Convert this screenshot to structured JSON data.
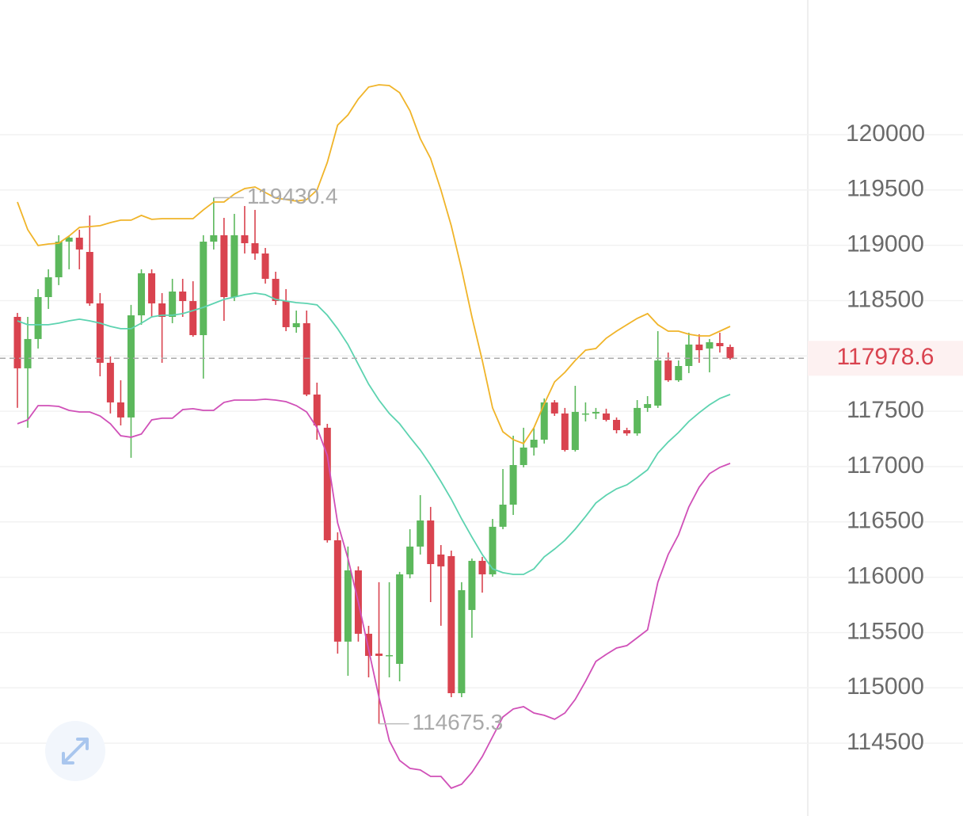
{
  "chart_data": {
    "type": "candlestick",
    "ylim": [
      113842,
      121217
    ],
    "yticks": [
      114500,
      115000,
      115500,
      116000,
      116500,
      117000,
      117500,
      118000,
      118500,
      119000,
      119500,
      120000
    ],
    "grid": true,
    "up_color": "#5cb85c",
    "down_color": "#d9434f",
    "open": [
      118353,
      117888,
      118153,
      118532,
      118711,
      119033,
      119069,
      118940,
      118475,
      117938,
      117580,
      117444,
      118367,
      118747,
      118475,
      118353,
      118582,
      118496,
      118188,
      119033,
      119091,
      118532,
      119091,
      119019,
      118926,
      118697,
      118496,
      118260,
      118296,
      117651,
      117351,
      116334,
      115418,
      116062,
      115489,
      115310,
      115289,
      115217,
      116026,
      116277,
      116513,
      116205,
      116191,
      114952,
      115704,
      116148,
      116026,
      116456,
      116656,
      117014,
      117172,
      117243,
      117580,
      117480,
      117150,
      117472,
      117480,
      117480,
      117422,
      117329,
      117300,
      117530,
      117551,
      117959,
      117780,
      117909,
      118103,
      118067,
      118117,
      118081
    ],
    "high": [
      118389,
      118353,
      118604,
      118783,
      119091,
      119083,
      119141,
      119270,
      118568,
      117995,
      117780,
      118461,
      118783,
      118783,
      118568,
      118697,
      118697,
      118675,
      119091,
      119430.4,
      119248,
      119284,
      119355,
      119320,
      118976,
      118761,
      118604,
      118410,
      118410,
      117759,
      117386,
      116406,
      116277,
      116098,
      115561,
      115955,
      115955,
      116048,
      116434,
      116742,
      116635,
      116291,
      116241,
      115955,
      116169,
      116184,
      116527,
      116978,
      117279,
      117351,
      117351,
      117616,
      117601,
      117530,
      117730,
      117580,
      117530,
      117523,
      117444,
      117351,
      117601,
      117637,
      118224,
      118031,
      117959,
      118210,
      118196,
      118153,
      118210,
      118103
    ],
    "low": [
      117531,
      117351,
      118067,
      118425,
      118640,
      118783,
      118783,
      118453,
      117816,
      117480,
      117372,
      117079,
      118282,
      118353,
      117938,
      118296,
      118353,
      118174,
      117795,
      118962,
      118317,
      118496,
      118926,
      118869,
      118654,
      118461,
      118224,
      118210,
      117637,
      117243,
      116313,
      115310,
      115109,
      115418,
      115095,
      114675.3,
      115095,
      115059,
      115990,
      116205,
      115775,
      115561,
      114916,
      114916,
      115453,
      115861,
      116005,
      116434,
      116563,
      116993,
      117100,
      117208,
      117458,
      117136,
      117136,
      117408,
      117429,
      117408,
      117300,
      117279,
      117279,
      117494,
      117530,
      117766,
      117766,
      117845,
      117938,
      117852,
      118031,
      117966
    ],
    "close": [
      117888,
      118153,
      118532,
      118711,
      119033,
      119069,
      118962,
      118475,
      117938,
      117580,
      117444,
      118367,
      118747,
      118475,
      118353,
      118582,
      118496,
      118188,
      119033,
      119091,
      118532,
      119091,
      119019,
      118926,
      118697,
      118496,
      118260,
      118296,
      117651,
      117372,
      116334,
      115418,
      116062,
      115489,
      115289,
      115289,
      115296,
      116026,
      116277,
      116513,
      116119,
      116098,
      114952,
      115883,
      116148,
      116026,
      116456,
      116656,
      117014,
      117172,
      117243,
      117580,
      117480,
      117150,
      117494,
      117480,
      117494,
      117422,
      117329,
      117300,
      117530,
      117565,
      117959,
      117780,
      117909,
      118103,
      118052,
      118124,
      118088,
      117978.6
    ],
    "bands": [
      {
        "color": "#f0b429",
        "values": [
          119391,
          119141,
          118998,
          119012,
          119019,
          119084,
          119162,
          119169,
          119177,
          119205,
          119227,
          119227,
          119270,
          119234,
          119241,
          119241,
          119241,
          119241,
          119320,
          119391,
          119391,
          119463,
          119513,
          119527,
          119477,
          119427,
          119413,
          119399,
          119413,
          119499,
          119749,
          120086,
          120179,
          120322,
          120430,
          120451,
          120444,
          120379,
          120215,
          119964,
          119785,
          119499,
          119177,
          118783,
          118353,
          117959,
          117530,
          117315,
          117243,
          117208,
          117351,
          117566,
          117766,
          117852,
          117959,
          118052,
          118067,
          118160,
          118224,
          118282,
          118339,
          118382,
          118282,
          118224,
          118224,
          118196,
          118181,
          118181,
          118224,
          118267
        ]
      },
      {
        "color": "#5dd3b0",
        "values": [
          118317,
          118282,
          118282,
          118282,
          118296,
          118317,
          118332,
          118317,
          118296,
          118267,
          118246,
          118246,
          118296,
          118353,
          118368,
          118368,
          118382,
          118410,
          118439,
          118475,
          118511,
          118532,
          118554,
          118568,
          118554,
          118511,
          118496,
          118482,
          118475,
          118461,
          118368,
          118246,
          118103,
          117924,
          117745,
          117601,
          117480,
          117387,
          117265,
          117150,
          117014,
          116864,
          116706,
          116527,
          116363,
          116205,
          116076,
          116041,
          116026,
          116026,
          116076,
          116184,
          116255,
          116334,
          116434,
          116549,
          116671,
          116742,
          116799,
          116835,
          116900,
          116971,
          117122,
          117222,
          117308,
          117408,
          117487,
          117558,
          117616,
          117652
        ]
      },
      {
        "color": "#d050b8",
        "values": [
          117387,
          117422,
          117551,
          117551,
          117544,
          117508,
          117494,
          117494,
          117458,
          117387,
          117279,
          117265,
          117294,
          117422,
          117437,
          117437,
          117515,
          117523,
          117508,
          117508,
          117580,
          117601,
          117601,
          117601,
          117609,
          117601,
          117587,
          117551,
          117494,
          117351,
          117100,
          116492,
          116169,
          115776,
          115346,
          114916,
          114523,
          114344,
          114272,
          114258,
          114200,
          114200,
          114093,
          114129,
          114236,
          114379,
          114558,
          114737,
          114809,
          114830,
          114773,
          114752,
          114716,
          114773,
          114895,
          115060,
          115239,
          115303,
          115360,
          115382,
          115453,
          115525,
          115955,
          116205,
          116384,
          116635,
          116814,
          116936,
          116993,
          117029
        ]
      }
    ],
    "max_label": 119430.4,
    "min_label": 114675.3,
    "last_price": 117978.6,
    "last_price_color": "#d9434f"
  }
}
